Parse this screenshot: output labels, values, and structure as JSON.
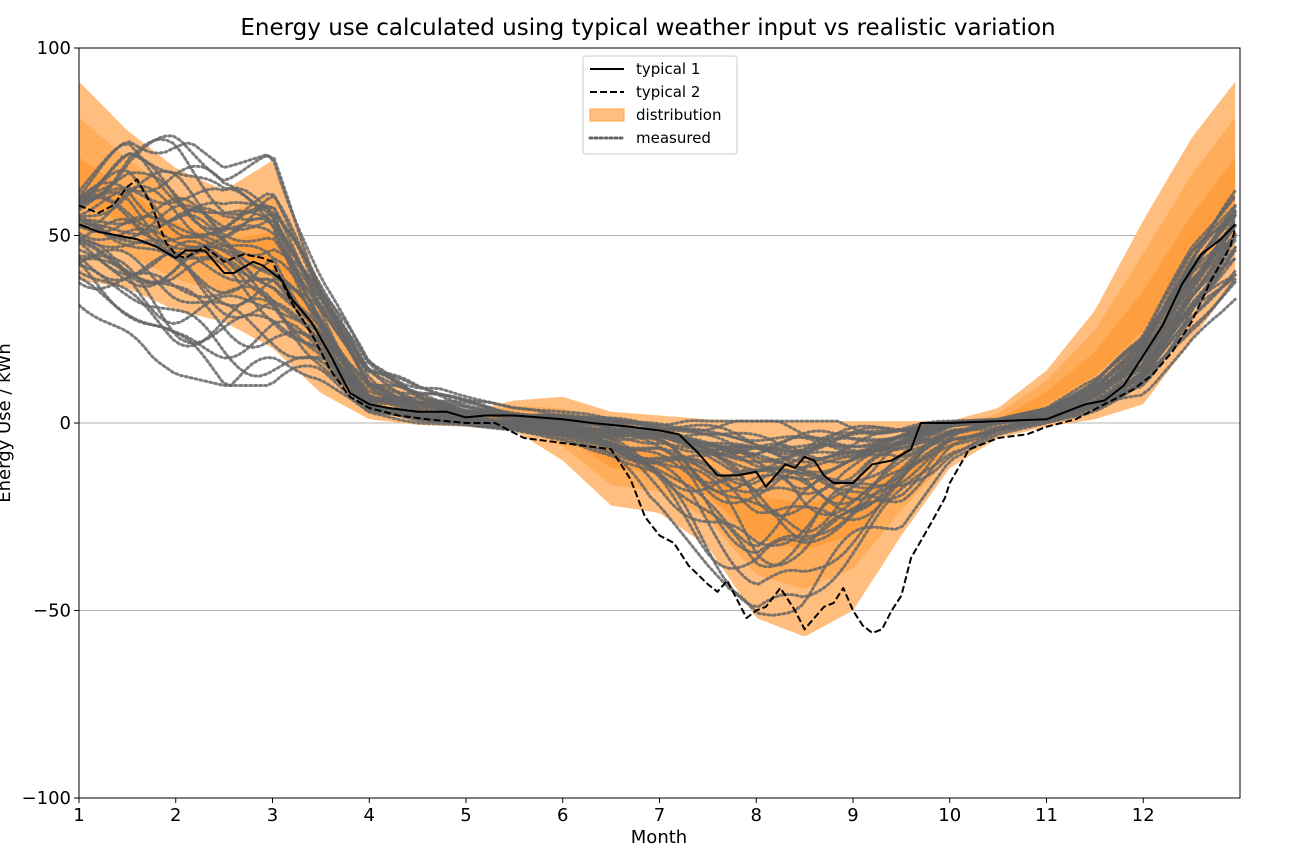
{
  "chart_data": {
    "type": "line",
    "title": "Energy use calculated using typical weather input vs realistic variation",
    "xlabel": "Month",
    "ylabel": "Energy Use / kWh",
    "xlim": [
      1,
      13
    ],
    "ylim": [
      -100,
      100
    ],
    "x_ticks": [
      "1",
      "2",
      "3",
      "4",
      "5",
      "6",
      "7",
      "8",
      "9",
      "10",
      "11",
      "12"
    ],
    "y_ticks": [
      "100",
      "50",
      "0",
      "−50",
      "−100"
    ],
    "y_tick_values": [
      100,
      50,
      0,
      -50,
      -100
    ],
    "grid": "horizontal",
    "legend_position": "upper-center",
    "colors": {
      "typical_1": "#000000",
      "typical_2": "#000000",
      "distribution_outer": "#ffbe7d",
      "distribution_inner": "#ff9f40",
      "distribution_core": "#ff8c1a",
      "measured": "#666666",
      "grid": "#b0b0b0"
    },
    "legend": [
      {
        "label": "typical 1",
        "style": "solid"
      },
      {
        "label": "typical 2",
        "style": "dashed"
      },
      {
        "label": "distribution",
        "style": "fill"
      },
      {
        "label": "measured",
        "style": "dotted"
      }
    ],
    "series": [
      {
        "name": "typical 1",
        "style": "solid",
        "x": [
          1.0,
          1.2,
          1.4,
          1.6,
          1.8,
          2.0,
          2.1,
          2.3,
          2.5,
          2.6,
          2.8,
          2.9,
          3.0,
          3.1,
          3.2,
          3.4,
          3.6,
          3.8,
          4.0,
          4.2,
          4.5,
          4.8,
          5.0,
          5.2,
          5.5,
          6.0,
          6.3,
          6.7,
          7.0,
          7.2,
          7.4,
          7.6,
          7.8,
          8.0,
          8.1,
          8.2,
          8.3,
          8.4,
          8.5,
          8.6,
          8.7,
          8.8,
          8.9,
          9.0,
          9.2,
          9.4,
          9.6,
          9.7,
          10.0,
          10.5,
          11.0,
          11.2,
          11.4,
          11.6,
          11.8,
          12.0,
          12.2,
          12.4,
          12.6,
          12.8,
          12.95
        ],
        "y": [
          53,
          51,
          50,
          49,
          47,
          44,
          46,
          46,
          40,
          40,
          43,
          42,
          40,
          38,
          33,
          27,
          18,
          8,
          5,
          4,
          3,
          3,
          1.5,
          2,
          2,
          1,
          0,
          -1,
          -2,
          -3,
          -8,
          -14,
          -14,
          -13,
          -17,
          -14,
          -11,
          -12,
          -9,
          -10,
          -14,
          -16,
          -16,
          -16,
          -11,
          -10,
          -7,
          0,
          0,
          0.5,
          1,
          3,
          5,
          6,
          10,
          18,
          26,
          37,
          45,
          49,
          53
        ]
      },
      {
        "name": "typical 2",
        "style": "dashed",
        "x": [
          1.0,
          1.2,
          1.35,
          1.5,
          1.6,
          1.75,
          1.9,
          2.0,
          2.1,
          2.3,
          2.5,
          2.7,
          2.9,
          3.0,
          3.2,
          3.4,
          3.6,
          3.8,
          4.0,
          4.3,
          4.6,
          5.0,
          5.3,
          5.6,
          5.9,
          6.2,
          6.5,
          6.7,
          6.85,
          7.0,
          7.15,
          7.3,
          7.5,
          7.6,
          7.7,
          7.8,
          7.9,
          8.0,
          8.1,
          8.25,
          8.4,
          8.5,
          8.6,
          8.7,
          8.8,
          8.9,
          9.0,
          9.1,
          9.2,
          9.3,
          9.4,
          9.5,
          9.6,
          9.8,
          9.95,
          10.0,
          10.2,
          10.5,
          10.8,
          11.0,
          11.3,
          11.6,
          11.9,
          12.1,
          12.3,
          12.5,
          12.7,
          12.9,
          12.95
        ],
        "y": [
          58,
          56,
          58,
          63,
          65,
          58,
          48,
          45,
          44,
          47,
          43,
          45,
          44,
          43,
          32,
          24,
          14,
          7,
          4,
          2,
          1,
          0,
          0,
          -4,
          -5,
          -6,
          -7,
          -15,
          -25,
          -30,
          -32,
          -38,
          -43,
          -45,
          -42,
          -47,
          -52,
          -50,
          -49,
          -44,
          -50,
          -55,
          -52,
          -49,
          -48,
          -44,
          -50,
          -54,
          -56,
          -55,
          -50,
          -46,
          -36,
          -27,
          -20,
          -16,
          -7,
          -4,
          -3,
          -1,
          1,
          5,
          9,
          13,
          19,
          27,
          38,
          47,
          52
        ]
      },
      {
        "name": "distribution",
        "style": "fill",
        "x": [
          1.0,
          1.5,
          2.0,
          2.5,
          3.0,
          3.5,
          4.0,
          4.5,
          5.0,
          5.5,
          6.0,
          6.5,
          7.0,
          7.5,
          8.0,
          8.5,
          9.0,
          9.5,
          10.0,
          10.5,
          11.0,
          11.5,
          12.0,
          12.5,
          12.95
        ],
        "upper": [
          91,
          78,
          68,
          62,
          70,
          36,
          14,
          8,
          3,
          6,
          7,
          3,
          2,
          1,
          0.5,
          0.5,
          0.5,
          0.5,
          0.5,
          4,
          14,
          30,
          54,
          76,
          91
        ],
        "lower": [
          38,
          36,
          30,
          27,
          20,
          8,
          1,
          -0.5,
          -1,
          -2,
          -10,
          -22,
          -24,
          -33,
          -52,
          -57,
          -50,
          -30,
          -12,
          -4,
          -1,
          1,
          5,
          22,
          38
        ]
      },
      {
        "name": "measured",
        "style": "dotted",
        "count": 40,
        "x": [
          1.0,
          1.5,
          2.0,
          2.5,
          3.0,
          3.5,
          4.0,
          4.5,
          5.0,
          5.5,
          6.0,
          6.5,
          7.0,
          7.5,
          8.0,
          8.5,
          9.0,
          9.5,
          10.0,
          10.5,
          11.0,
          11.5,
          12.0,
          12.5,
          12.95
        ],
        "median": [
          52,
          49,
          45,
          43,
          40,
          25,
          6,
          3,
          1,
          0,
          -1,
          -3,
          -5,
          -10,
          -14,
          -15,
          -12,
          -7,
          -1,
          0.5,
          2,
          6,
          15,
          35,
          50
        ],
        "upper": [
          64,
          80,
          78,
          68,
          72,
          40,
          18,
          11,
          7,
          4,
          3,
          2,
          1,
          0.5,
          0.5,
          0.5,
          0.5,
          0.5,
          0.5,
          1,
          4,
          12,
          26,
          48,
          62
        ],
        "lower": [
          30,
          22,
          13,
          10,
          10,
          10,
          2,
          0,
          -0.5,
          -2,
          -5,
          -10,
          -22,
          -38,
          -52,
          -50,
          -38,
          -28,
          -10,
          -3,
          0,
          3,
          7,
          22,
          33
        ]
      }
    ]
  }
}
